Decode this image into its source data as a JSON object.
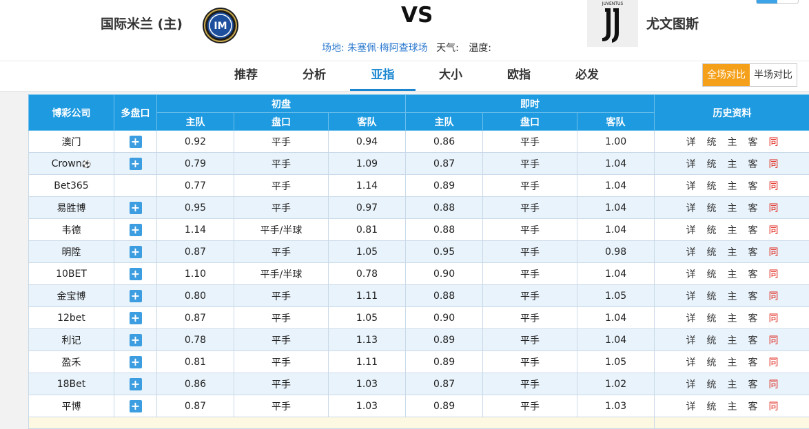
{
  "match": {
    "home_team": "国际米兰 (主)",
    "vs": "VS",
    "away_team": "尤文图斯",
    "venue_label": "场地:",
    "venue_name": "朱塞佩·梅阿查球场",
    "weather_label": "天气:",
    "temp_label": "温度:",
    "home_logo": "inter-logo",
    "away_logo": "juventus-logo",
    "juve_logo_text": "JUVENTUS"
  },
  "tabs": [
    "推荐",
    "分析",
    "亚指",
    "大小",
    "欧指",
    "必发"
  ],
  "active_tab": "亚指",
  "compare": {
    "full": "全场对比",
    "half": "半场对比",
    "active": "全场对比"
  },
  "table_header": {
    "company": "博彩公司",
    "multi": "多盘口",
    "initial": "初盘",
    "live": "即时",
    "home": "主队",
    "line": "盘口",
    "away": "客队",
    "history": "历史资料"
  },
  "history_links": [
    "详",
    "统",
    "主",
    "客",
    "同"
  ],
  "rows": [
    {
      "company": "澳门",
      "plus": true,
      "i_home": "0.92",
      "i_line": "平手",
      "i_away": "0.94",
      "l_home": "0.86",
      "l_line": "平手",
      "l_away": "1.00"
    },
    {
      "company": "Crown",
      "ball": true,
      "plus": true,
      "i_home": "0.79",
      "i_line": "平手",
      "i_away": "1.09",
      "l_home": "0.87",
      "l_line": "平手",
      "l_away": "1.04"
    },
    {
      "company": "Bet365",
      "plus": false,
      "i_home": "0.77",
      "i_line": "平手",
      "i_away": "1.14",
      "l_home": "0.89",
      "l_line": "平手",
      "l_away": "1.04"
    },
    {
      "company": "易胜博",
      "plus": true,
      "i_home": "0.95",
      "i_line": "平手",
      "i_away": "0.97",
      "l_home": "0.88",
      "l_line": "平手",
      "l_away": "1.04"
    },
    {
      "company": "韦德",
      "plus": true,
      "i_home": "1.14",
      "i_line": "平手/半球",
      "i_away": "0.81",
      "l_home": "0.88",
      "l_line": "平手",
      "l_away": "1.04"
    },
    {
      "company": "明陞",
      "plus": true,
      "i_home": "0.87",
      "i_line": "平手",
      "i_away": "1.05",
      "l_home": "0.95",
      "l_line": "平手",
      "l_away": "0.98"
    },
    {
      "company": "10BET",
      "plus": true,
      "i_home": "1.10",
      "i_line": "平手/半球",
      "i_away": "0.78",
      "l_home": "0.90",
      "l_line": "平手",
      "l_away": "1.04"
    },
    {
      "company": "金宝博",
      "plus": true,
      "i_home": "0.80",
      "i_line": "平手",
      "i_away": "1.11",
      "l_home": "0.88",
      "l_line": "平手",
      "l_away": "1.05"
    },
    {
      "company": "12bet",
      "plus": true,
      "i_home": "0.87",
      "i_line": "平手",
      "i_away": "1.05",
      "l_home": "0.90",
      "l_line": "平手",
      "l_away": "1.04"
    },
    {
      "company": "利记",
      "plus": true,
      "i_home": "0.78",
      "i_line": "平手",
      "i_away": "1.13",
      "l_home": "0.89",
      "l_line": "平手",
      "l_away": "1.04"
    },
    {
      "company": "盈禾",
      "plus": true,
      "i_home": "0.81",
      "i_line": "平手",
      "i_away": "1.11",
      "l_home": "0.89",
      "l_line": "平手",
      "l_away": "1.05"
    },
    {
      "company": "18Bet",
      "plus": true,
      "i_home": "0.86",
      "i_line": "平手",
      "i_away": "1.03",
      "l_home": "0.87",
      "l_line": "平手",
      "l_away": "1.02"
    },
    {
      "company": "平博",
      "plus": true,
      "i_home": "0.87",
      "i_line": "平手",
      "i_away": "1.03",
      "l_home": "0.89",
      "l_line": "平手",
      "l_away": "1.03"
    }
  ],
  "colors": {
    "header_blue": "#1e9ae0",
    "accent_orange": "#f5a01a",
    "link_red": "#e0261b",
    "tab_active": "#1a86d0"
  }
}
